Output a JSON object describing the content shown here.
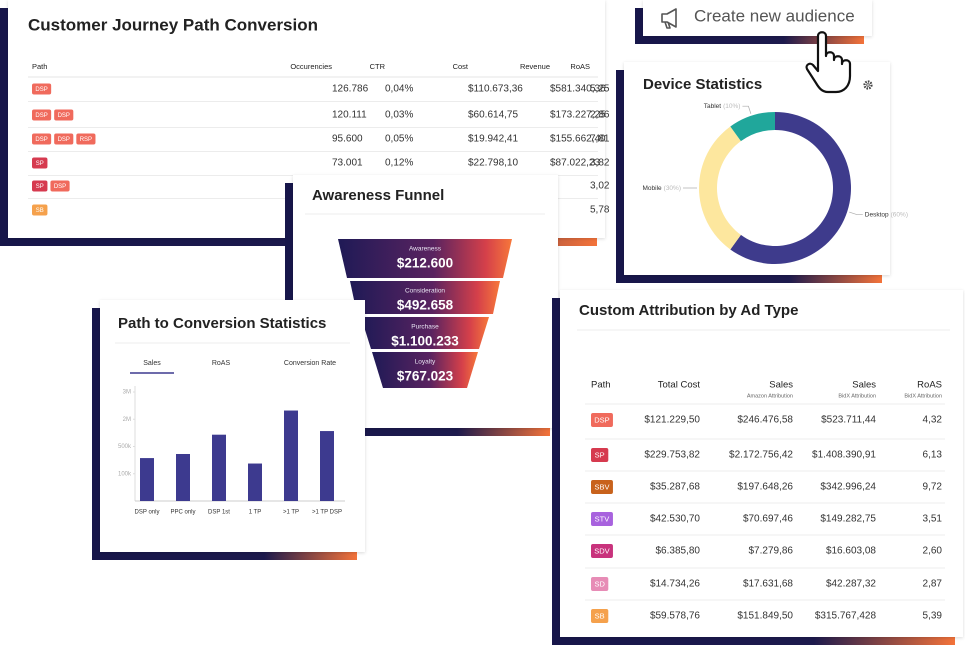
{
  "journey": {
    "title": "Customer Journey  Path Conversion",
    "columns": [
      "Path",
      "Occurencies",
      "CTR",
      "Cost",
      "Revenue",
      "RoAS"
    ],
    "rows": [
      {
        "path": [
          "DSP"
        ],
        "occurences": "126.786",
        "ctr": "0,04%",
        "cost": "$110.673,36",
        "revenue": "$581.340,36",
        "roas": "5,25"
      },
      {
        "path": [
          "DSP",
          "DSP"
        ],
        "occurences": "120.111",
        "ctr": "0,03%",
        "cost": "$60.614,75",
        "revenue": "$173.227,25",
        "roas": "2,86"
      },
      {
        "path": [
          "DSP",
          "DSP",
          "RSP"
        ],
        "occurences": "95.600",
        "ctr": "0,05%",
        "cost": "$19.942,41",
        "revenue": "$155.662,40",
        "roas": "7,81"
      },
      {
        "path": [
          "SP"
        ],
        "occurences": "73.001",
        "ctr": "0,12%",
        "cost": "$22.798,10",
        "revenue": "$87.022,23",
        "roas": "3,82"
      },
      {
        "path": [
          "SP",
          "DSP"
        ],
        "roas": "3,02"
      },
      {
        "path": [
          "SB"
        ],
        "roas": "5,78"
      }
    ]
  },
  "badge_colors": {
    "DSP": "#f06a5c",
    "SP": "#d63a4f",
    "RSP": "#f06a5c",
    "SB": "#f5a14c",
    "SBV": "#c8621c",
    "STV": "#a862de",
    "SDV": "#c8327c",
    "SD": "#e78cb6"
  },
  "audience_button": {
    "label": "Create new audience"
  },
  "funnel": {
    "title": "Awareness Funnel",
    "stages": [
      {
        "label": "Awareness",
        "value": "$212.600"
      },
      {
        "label": "Consideration",
        "value": "$492.658"
      },
      {
        "label": "Purchase",
        "value": "$1.100.233"
      },
      {
        "label": "Loyalty",
        "value": "$767.023"
      }
    ]
  },
  "attribution": {
    "title": "Custom Attribution by Ad Type",
    "columns": [
      {
        "label": "Path"
      },
      {
        "label": "Total Cost"
      },
      {
        "label": "Sales",
        "sub": "Amazon Attribution"
      },
      {
        "label": "Sales",
        "sub": "BidX Attribution"
      },
      {
        "label": "RoAS",
        "sub": "BidX Attribution"
      }
    ],
    "rows": [
      {
        "path": "DSP",
        "cells": [
          "$121.229,50",
          "$246.476,58",
          "$523.711,44",
          "4,32"
        ]
      },
      {
        "path": "SP",
        "cells": [
          "$229.753,82",
          "$2.172.756,42",
          "$1.408.390,91",
          "6,13"
        ]
      },
      {
        "path": "SBV",
        "cells": [
          "$35.287,68",
          "$197.648,26",
          "$342.996,24",
          "9,72"
        ]
      },
      {
        "path": "STV",
        "cells": [
          "$42.530,70",
          "$70.697,46",
          "$149.282,75",
          "3,51"
        ]
      },
      {
        "path": "SDV",
        "cells": [
          "$6.385,80",
          "$7.279,86",
          "$16.603,08",
          "2,60"
        ]
      },
      {
        "path": "SD",
        "cells": [
          "$14.734,26",
          "$17.631,68",
          "$42.287,32",
          "2,87"
        ]
      },
      {
        "path": "SB",
        "cells": [
          "$59.578,76",
          "$151.849,50",
          "$315.767,428",
          "5,39"
        ]
      }
    ]
  },
  "chart_data": [
    {
      "type": "bar",
      "title": "Path to Conversion Statistics",
      "tabs": [
        "Sales",
        "RoAS",
        "Conversion Rate"
      ],
      "active_tab": 0,
      "categories": [
        "DSP only",
        "PPC only",
        "DSP 1st",
        "1 TP",
        ">1 TP",
        ">1 TP DSP"
      ],
      "values": [
        330000,
        390000,
        1150000,
        250000,
        2320000,
        1350000
      ],
      "color": "#3d3a8f",
      "ylim": [
        0,
        3000000
      ],
      "yticks": [
        {
          "value": 100000,
          "label": "100k"
        },
        {
          "value": 500000,
          "label": "500k"
        },
        {
          "value": 2000000,
          "label": "2M"
        },
        {
          "value": 3000000,
          "label": "3M"
        }
      ],
      "grid": false
    },
    {
      "type": "pie",
      "title": "Device Statistics",
      "donut": true,
      "categories": [
        "Desktop",
        "Mobile",
        "Tablet"
      ],
      "values": [
        60,
        30,
        10
      ],
      "value_labels": [
        "(60%)",
        "(30%)",
        "(10%)"
      ],
      "colors": [
        "#3e3b8c",
        "#fde79e",
        "#20a79b"
      ]
    }
  ]
}
